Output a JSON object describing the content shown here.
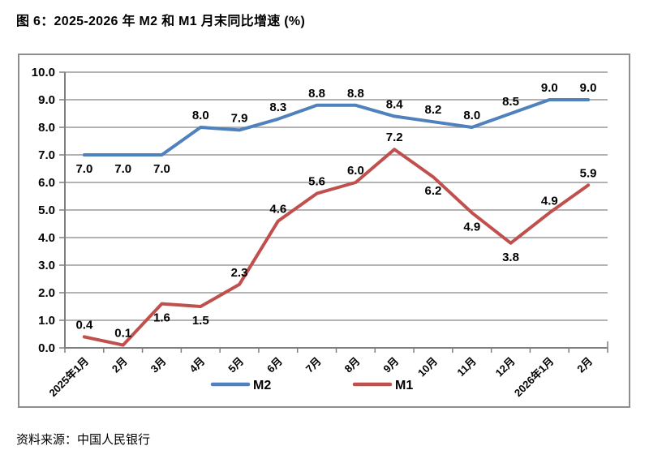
{
  "figure": {
    "title": "图 6：2025-2026 年 M2 和 M1 月末同比增速 (%)",
    "source": "资料来源：中国人民银行"
  },
  "chart_data": {
    "type": "line",
    "title": "图 6：2025-2026 年 M2 和 M1 月末同比增速 (%)",
    "categories": [
      "2025年1月",
      "2月",
      "3月",
      "4月",
      "5月",
      "6月",
      "7月",
      "8月",
      "9月",
      "10月",
      "11月",
      "12月",
      "2026年1月",
      "2月"
    ],
    "series": [
      {
        "name": "M2",
        "color": "#4F81BD",
        "values": [
          7.0,
          7.0,
          7.0,
          8.0,
          7.9,
          8.3,
          8.8,
          8.8,
          8.4,
          8.2,
          8.0,
          8.5,
          9.0,
          9.0
        ],
        "label_positions": [
          "below",
          "below",
          "below",
          "above",
          "above",
          "above",
          "above",
          "above",
          "above",
          "above",
          "above",
          "above",
          "above",
          "above"
        ]
      },
      {
        "name": "M1",
        "color": "#C0504D",
        "values": [
          0.4,
          0.1,
          1.6,
          1.5,
          2.3,
          4.6,
          5.6,
          6.0,
          7.2,
          6.2,
          4.9,
          3.8,
          4.9,
          5.9
        ],
        "label_positions": [
          "above",
          "above",
          "below",
          "below",
          "above",
          "above",
          "above",
          "above",
          "above",
          "below",
          "below",
          "below",
          "above",
          "above"
        ]
      }
    ],
    "xlabel": "",
    "ylabel": "",
    "ylim": [
      0,
      10
    ],
    "ytick_step": 1,
    "ytick_decimals": 1,
    "label_decimals": 1,
    "grid": true,
    "legend_position": "bottom",
    "grid_color": "#9a9a9a",
    "axis_color": "#7f7f7f"
  }
}
